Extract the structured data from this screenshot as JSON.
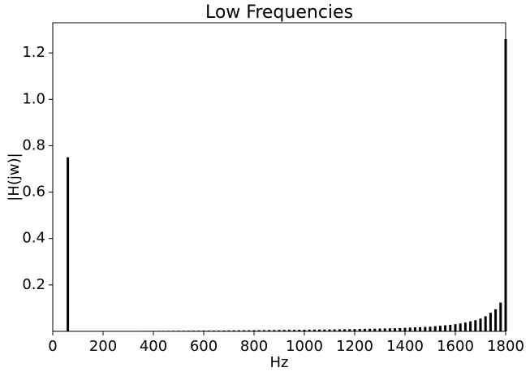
{
  "chart_data": {
    "type": "bar",
    "title": "Low Frequencies",
    "x_label": "Hz",
    "y_label": "|H(jw)|",
    "x": [
      60,
      180,
      200,
      220,
      240,
      260,
      280,
      300,
      320,
      340,
      360,
      380,
      400,
      420,
      440,
      460,
      480,
      500,
      520,
      540,
      560,
      580,
      600,
      620,
      640,
      660,
      680,
      700,
      720,
      740,
      760,
      780,
      800,
      820,
      840,
      860,
      880,
      900,
      920,
      940,
      960,
      980,
      1000,
      1020,
      1040,
      1060,
      1080,
      1100,
      1120,
      1140,
      1160,
      1180,
      1200,
      1220,
      1240,
      1260,
      1280,
      1300,
      1320,
      1340,
      1360,
      1380,
      1400,
      1420,
      1440,
      1460,
      1480,
      1500,
      1520,
      1540,
      1560,
      1580,
      1600,
      1620,
      1640,
      1660,
      1680,
      1700,
      1720,
      1740,
      1760,
      1780,
      1800
    ],
    "values": [
      0.75,
      0.001,
      0.0011,
      0.0012,
      0.0013,
      0.0014,
      0.0015,
      0.0016,
      0.0017,
      0.0018,
      0.0019,
      0.002,
      0.0021,
      0.0022,
      0.0023,
      0.0024,
      0.0025,
      0.0026,
      0.0027,
      0.0028,
      0.0029,
      0.003,
      0.0031,
      0.0032,
      0.0033,
      0.0034,
      0.0035,
      0.004,
      0.0042,
      0.0044,
      0.0046,
      0.0048,
      0.005,
      0.0052,
      0.0054,
      0.0056,
      0.0058,
      0.006,
      0.0062,
      0.0064,
      0.0066,
      0.0068,
      0.007,
      0.0073,
      0.0075,
      0.0078,
      0.008,
      0.0083,
      0.0085,
      0.0088,
      0.009,
      0.0095,
      0.01,
      0.0105,
      0.011,
      0.0113,
      0.0117,
      0.012,
      0.0125,
      0.013,
      0.0135,
      0.014,
      0.015,
      0.016,
      0.017,
      0.018,
      0.019,
      0.02,
      0.022,
      0.024,
      0.026,
      0.028,
      0.031,
      0.034,
      0.038,
      0.043,
      0.048,
      0.055,
      0.065,
      0.08,
      0.095,
      0.124,
      1.26
    ],
    "color": "#000000",
    "xlim": [
      0,
      1800
    ],
    "xticks": [
      0,
      200,
      400,
      600,
      800,
      1000,
      1200,
      1400,
      1600,
      1800
    ],
    "ylim": [
      0,
      1.33
    ],
    "yticks": [
      0.2,
      0.4,
      0.6,
      0.8,
      {
        "value": 1,
        "label": "1.0"
      },
      1.2
    ]
  }
}
